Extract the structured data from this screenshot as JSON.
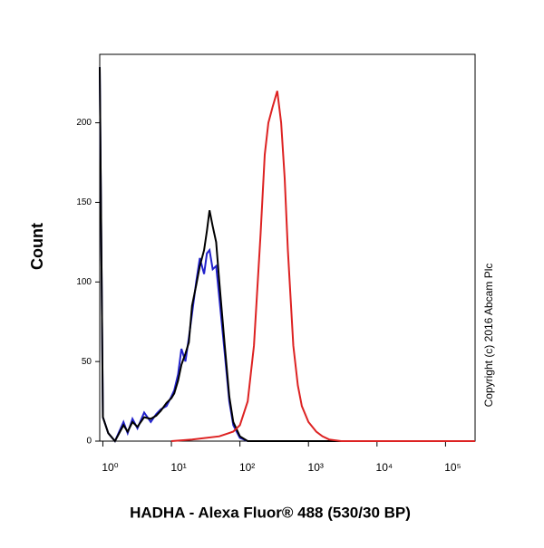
{
  "chart_data": {
    "type": "line",
    "x_label": "HADHA - Alexa Fluor® 488 (530/30 BP)",
    "y_label": "Count",
    "annotation": "Copyright (c) 2016 Abcam Plc",
    "log_x": true,
    "xlim": [
      0.9,
      270000
    ],
    "ylim": [
      0,
      243
    ],
    "xticks": [
      {
        "value": 1,
        "label": "10⁰"
      },
      {
        "value": 10,
        "label": "10¹"
      },
      {
        "value": 100,
        "label": "10²"
      },
      {
        "value": 1000,
        "label": "10³"
      },
      {
        "value": 10000,
        "label": "10⁴"
      },
      {
        "value": 100000,
        "label": "10⁵"
      }
    ],
    "yticks": [
      0,
      50,
      100,
      150,
      200
    ],
    "series": [
      {
        "color": "#2222cc",
        "x": [
          0.9,
          1.0,
          1.2,
          1.5,
          2,
          2.3,
          2.7,
          3.2,
          4,
          5,
          6,
          7,
          8.5,
          10,
          11,
          12.5,
          14,
          16,
          18,
          20,
          23,
          26,
          30,
          33,
          36,
          40,
          45,
          50,
          60,
          70,
          80,
          100,
          130
        ],
        "values": [
          235,
          15,
          5,
          0,
          12,
          5,
          14,
          8,
          18,
          12,
          17,
          20,
          22,
          28,
          32,
          42,
          58,
          50,
          65,
          80,
          100,
          115,
          105,
          118,
          120,
          108,
          110,
          90,
          55,
          25,
          10,
          2,
          0
        ]
      },
      {
        "color": "#000000",
        "x": [
          0.9,
          1.0,
          1.2,
          1.5,
          2,
          2.3,
          2.7,
          3.2,
          4,
          5,
          6,
          7,
          8.5,
          10,
          11,
          12.5,
          14,
          16,
          18,
          20,
          23,
          26,
          30,
          33,
          36,
          40,
          45,
          50,
          60,
          70,
          80,
          100,
          130,
          270000
        ],
        "values": [
          235,
          15,
          5,
          0,
          10,
          6,
          12,
          9,
          15,
          14,
          16,
          19,
          24,
          27,
          30,
          38,
          48,
          55,
          62,
          85,
          98,
          110,
          120,
          132,
          145,
          135,
          125,
          100,
          60,
          28,
          12,
          3,
          0,
          0
        ]
      },
      {
        "color": "#dd2222",
        "x": [
          10,
          20,
          50,
          80,
          100,
          130,
          160,
          200,
          230,
          260,
          300,
          350,
          400,
          450,
          500,
          600,
          700,
          800,
          1000,
          1300,
          1600,
          2000,
          3000,
          270000
        ],
        "values": [
          0,
          1,
          3,
          6,
          10,
          25,
          60,
          130,
          180,
          200,
          210,
          220,
          200,
          165,
          120,
          60,
          35,
          22,
          12,
          6,
          3,
          1,
          0,
          0
        ]
      }
    ]
  }
}
